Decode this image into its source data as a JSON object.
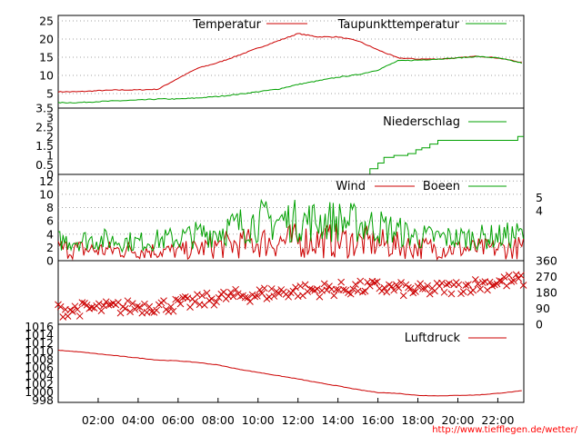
{
  "credit": "http://www.tiefflegen.de/wetter/",
  "x_ticks": [
    "02:00",
    "04:00",
    "06:00",
    "08:00",
    "10:00",
    "12:00",
    "14:00",
    "16:00",
    "18:00",
    "20:00",
    "22:00"
  ],
  "colors": {
    "red": "#cc0000",
    "green": "#00a000",
    "grid": "#a0a0a0",
    "credit": "#ff0000"
  },
  "chart_data": [
    {
      "type": "line",
      "y_ticks": [
        "5",
        "10",
        "15",
        "20",
        "25"
      ],
      "ylim": [
        1,
        26.5
      ],
      "grid": true,
      "legend_position": "top-right",
      "series": [
        {
          "name": "Temperatur",
          "color": "#cc0000",
          "x": [
            0,
            1,
            2,
            3,
            4,
            5,
            6,
            7,
            8,
            9,
            10,
            11,
            12,
            13,
            14,
            15,
            16,
            17,
            18,
            19,
            20,
            21,
            22,
            23.3
          ],
          "values": [
            5.5,
            5.5,
            5.8,
            6,
            6,
            6.2,
            9.2,
            12,
            13.5,
            15.5,
            17.5,
            19.5,
            21.5,
            20.6,
            20.6,
            19.5,
            17,
            14.8,
            14.5,
            14.5,
            14.8,
            15.3,
            14.8,
            13.5
          ]
        },
        {
          "name": "Taupunkttemperatur",
          "color": "#00a000",
          "x": [
            0,
            1,
            2,
            3,
            4,
            5,
            6,
            7,
            8,
            9,
            10,
            11,
            12,
            13,
            14,
            15,
            16,
            17,
            18,
            19,
            20,
            21,
            22,
            23.3
          ],
          "values": [
            2.5,
            2.5,
            2.8,
            3,
            3.2,
            3.5,
            3.5,
            3.8,
            4.2,
            4.8,
            5.5,
            6.2,
            7.5,
            8.5,
            9.5,
            10.2,
            11.5,
            14,
            14.2,
            14.5,
            14.8,
            15.2,
            14.8,
            13.3
          ]
        }
      ]
    },
    {
      "type": "line",
      "y_ticks": [
        "0",
        "0.5",
        "1",
        "1.5",
        "2",
        "2.5",
        "3",
        "3.5"
      ],
      "ylim": [
        0,
        3.5
      ],
      "grid": false,
      "legend_position": "top-right",
      "series": [
        {
          "name": "Niederschlag",
          "color": "#00a000",
          "x": [
            0,
            15.3,
            15.6,
            16.0,
            16.3,
            16.8,
            17.5,
            17.9,
            18.2,
            18.6,
            19.0,
            22.9,
            23.0,
            23.3
          ],
          "values": [
            0,
            0,
            0.3,
            0.6,
            0.9,
            1.0,
            1.1,
            1.3,
            1.4,
            1.6,
            1.8,
            1.8,
            2.0,
            2.0
          ]
        }
      ]
    },
    {
      "type": "line",
      "y_ticks": [
        "0",
        "2",
        "4",
        "6",
        "8",
        "10",
        "12"
      ],
      "y2_ticks": [
        "4",
        "5"
      ],
      "ylim": [
        0,
        13
      ],
      "grid": true,
      "legend_position": "top-right",
      "series": [
        {
          "name": "Wind",
          "color": "#cc0000",
          "x": [
            0,
            2,
            4,
            6,
            8,
            10,
            12,
            14,
            16,
            18,
            20,
            22,
            23.3
          ],
          "values": [
            1.8,
            1.6,
            1.6,
            1.4,
            2.2,
            2.8,
            3.0,
            3.0,
            2.6,
            2.0,
            1.8,
            1.8,
            2.0
          ]
        },
        {
          "name": "Boeen",
          "color": "#00a000",
          "x": [
            0,
            2,
            4,
            6,
            8,
            10,
            12,
            14,
            16,
            18,
            20,
            22,
            23.3
          ],
          "values": [
            3.0,
            3.2,
            2.8,
            3.4,
            4.5,
            6.0,
            6.0,
            6.0,
            5.2,
            3.6,
            3.4,
            3.6,
            4.0
          ]
        }
      ]
    },
    {
      "type": "scatter",
      "y2_ticks": [
        "0",
        "90",
        "180",
        "270",
        "360"
      ],
      "ylim": [
        0,
        360
      ],
      "grid": false,
      "series": [
        {
          "name": "",
          "color": "#cc0000",
          "x": [
            0,
            2,
            4,
            6,
            8,
            10,
            12,
            14,
            16,
            18,
            20,
            22,
            23.3
          ],
          "values": [
            80,
            90,
            100,
            110,
            150,
            170,
            190,
            200,
            210,
            190,
            210,
            240,
            250
          ]
        }
      ]
    },
    {
      "type": "line",
      "y_ticks": [
        "998",
        "1000",
        "1002",
        "1004",
        "1006",
        "1008",
        "1010",
        "1012",
        "1014",
        "1016"
      ],
      "ylim": [
        997.5,
        1016.5
      ],
      "grid": false,
      "legend_position": "top-right",
      "series": [
        {
          "name": "Luftdruck",
          "color": "#cc0000",
          "x": [
            0,
            1,
            2,
            3,
            4,
            5,
            6,
            7,
            8,
            9,
            10,
            11,
            12,
            13,
            14,
            15,
            16,
            17,
            18,
            19,
            20,
            21,
            22,
            23,
            23.3
          ],
          "values": [
            1010.2,
            1009.8,
            1009.3,
            1008.8,
            1008.3,
            1007.8,
            1007.6,
            1007.2,
            1006.6,
            1005.6,
            1004.8,
            1004.0,
            1003.2,
            1002.3,
            1001.5,
            1000.6,
            999.9,
            999.7,
            999.2,
            999.1,
            999.2,
            999.3,
            999.7,
            1000.2,
            1000.4
          ]
        }
      ]
    }
  ]
}
